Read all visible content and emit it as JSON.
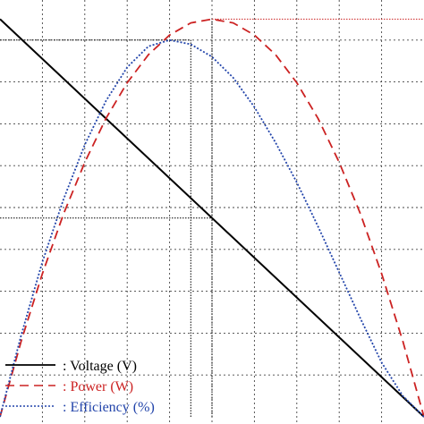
{
  "chart_data": {
    "type": "line",
    "title": "",
    "xlabel": "",
    "ylabel": "",
    "xlim": [
      0,
      10
    ],
    "ylim": [
      0,
      10
    ],
    "grid": true,
    "legend_position": "bottom-left",
    "series": [
      {
        "name": ": Voltage (V)",
        "style": "solid",
        "color": "#000000",
        "x": [
          0,
          10
        ],
        "y": [
          9.5,
          0
        ]
      },
      {
        "name": ": Power (W)",
        "style": "dashed",
        "color": "#cc2222",
        "x": [
          0,
          0.5,
          1,
          1.5,
          2,
          2.5,
          3,
          3.5,
          4,
          4.5,
          5,
          5.5,
          6,
          6.5,
          7,
          7.5,
          8,
          8.5,
          9,
          9.5,
          10
        ],
        "y": [
          0,
          1.81,
          3.42,
          4.85,
          6.08,
          7.13,
          7.98,
          8.65,
          9.12,
          9.41,
          9.5,
          9.41,
          9.12,
          8.65,
          7.98,
          7.13,
          6.08,
          4.85,
          3.42,
          1.81,
          0
        ]
      },
      {
        "name": ": Efficiency (%)",
        "style": "dotted",
        "color": "#2244aa",
        "x": [
          0,
          0.5,
          1,
          1.5,
          2,
          2.5,
          3,
          3.5,
          4,
          4.5,
          5,
          5.5,
          6,
          6.5,
          7,
          7.5,
          8,
          8.5,
          9,
          9.5,
          10
        ],
        "y": [
          0,
          1.95,
          3.7,
          5.2,
          6.5,
          7.55,
          8.35,
          8.85,
          9.0,
          8.9,
          8.6,
          8.1,
          7.4,
          6.55,
          5.6,
          4.55,
          3.45,
          2.35,
          1.3,
          0.5,
          0
        ]
      }
    ],
    "reference_lines": [
      {
        "from": [
          0,
          9.0
        ],
        "to": [
          4.5,
          9.0
        ],
        "color": "#000000"
      },
      {
        "from": [
          4.5,
          0
        ],
        "to": [
          4.5,
          9.0
        ],
        "color": "#000000"
      },
      {
        "from": [
          0,
          4.75
        ],
        "to": [
          5,
          4.75
        ],
        "color": "#000000"
      },
      {
        "from": [
          5,
          0
        ],
        "to": [
          5,
          9.5
        ],
        "color": "#000000"
      },
      {
        "from": [
          5,
          9.5
        ],
        "to": [
          10,
          9.5
        ],
        "color": "#cc2222"
      }
    ]
  }
}
